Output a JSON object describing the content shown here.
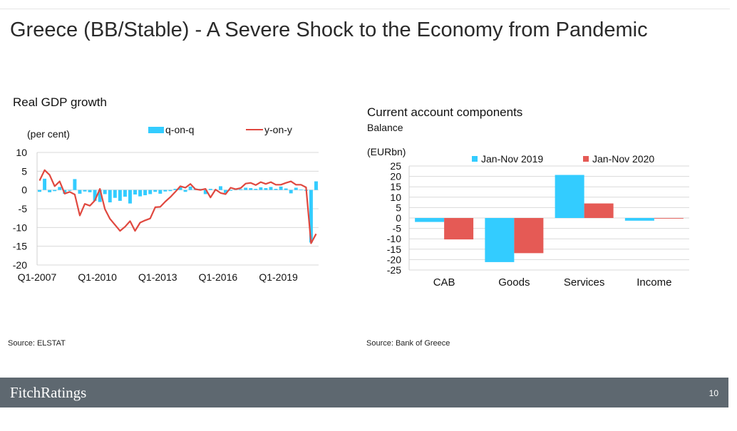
{
  "page": {
    "title": "Greece (BB/Stable) -  A Severe Shock to the Economy from Pandemic",
    "brand": "FitchRatings",
    "page_number": "10"
  },
  "left_chart": {
    "heading": "Real GDP growth",
    "unit_label": "(per cent)",
    "source": "Source: ELSTAT"
  },
  "right_chart": {
    "heading": "Current account components",
    "subheading": "Balance",
    "unit_label": "(EURbn)",
    "source": "Source: Bank of Greece"
  },
  "colors": {
    "qoq": "#33ccff",
    "yoy": "#e0483f",
    "jan_nov_2019": "#33ccff",
    "jan_nov_2020": "#e55a55",
    "footer": "#5e6870"
  },
  "chart_data": [
    {
      "type": "bar+line",
      "title": "Real GDP growth",
      "ylabel": "(per cent)",
      "ylim": [
        -20,
        10
      ],
      "yticks": [
        10,
        5,
        0,
        -5,
        -10,
        -15,
        -20
      ],
      "x_tick_labels": [
        "Q1-2007",
        "Q1-2010",
        "Q1-2013",
        "Q1-2016",
        "Q1-2019"
      ],
      "x_tick_index": [
        0,
        12,
        24,
        36,
        48
      ],
      "grid": true,
      "legend": "top",
      "series": [
        {
          "name": "q-on-q",
          "kind": "bar",
          "values": [
            -0.5,
            3.0,
            -0.6,
            -0.3,
            0.8,
            -1.0,
            -0.2,
            2.9,
            -1.0,
            -0.4,
            -0.6,
            -2.9,
            -3.2,
            -1.1,
            -3.3,
            -2.1,
            -2.9,
            -1.8,
            -3.6,
            -1.2,
            -1.7,
            -1.4,
            -1.1,
            -0.5,
            -1.0,
            -0.4,
            -0.3,
            0.3,
            0.7,
            -0.5,
            0.9,
            0.4,
            0.3,
            -1.1,
            0.3,
            0.1,
            1.0,
            -0.8,
            -0.2,
            0.4,
            0.2,
            0.6,
            0.5,
            0.3,
            0.7,
            0.5,
            0.8,
            0.3,
            0.9,
            0.4,
            -0.9,
            0.6,
            0.1,
            -0.2,
            -14.0,
            2.3
          ],
          "color": "#33ccff"
        },
        {
          "name": "y-on-y",
          "kind": "line",
          "values": [
            2.5,
            5.3,
            4.0,
            1.0,
            2.3,
            -1.0,
            -0.5,
            -1.2,
            -6.8,
            -3.7,
            -4.2,
            -2.8,
            0.3,
            -5.1,
            -7.7,
            -9.3,
            -10.9,
            -9.8,
            -8.3,
            -10.9,
            -8.7,
            -8.1,
            -7.6,
            -4.6,
            -4.5,
            -3.1,
            -1.9,
            -0.5,
            1.0,
            0.6,
            1.6,
            0.2,
            0.0,
            0.3,
            -2.0,
            0.1,
            -0.8,
            -1.1,
            0.6,
            0.2,
            0.5,
            1.7,
            1.9,
            1.3,
            2.1,
            1.6,
            2.1,
            1.4,
            1.4,
            1.9,
            2.3,
            1.4,
            1.4,
            0.7,
            -14.2,
            -11.7
          ],
          "color": "#e0483f"
        }
      ]
    },
    {
      "type": "bar",
      "title": "Current account components",
      "subtitle": "Balance",
      "ylabel": "(EURbn)",
      "ylim": [
        -25,
        25
      ],
      "yticks": [
        25,
        20,
        15,
        10,
        5,
        0,
        -5,
        -10,
        -15,
        -20,
        -25
      ],
      "categories": [
        "CAB",
        "Goods",
        "Services",
        "Income"
      ],
      "grid": true,
      "legend": "top",
      "series": [
        {
          "name": "Jan-Nov 2019",
          "values": [
            -1.9,
            -21.2,
            20.7,
            -1.3
          ],
          "color": "#33ccff"
        },
        {
          "name": "Jan-Nov 2020",
          "values": [
            -10.3,
            -16.9,
            7.0,
            -0.3
          ],
          "color": "#e55a55"
        }
      ]
    }
  ]
}
